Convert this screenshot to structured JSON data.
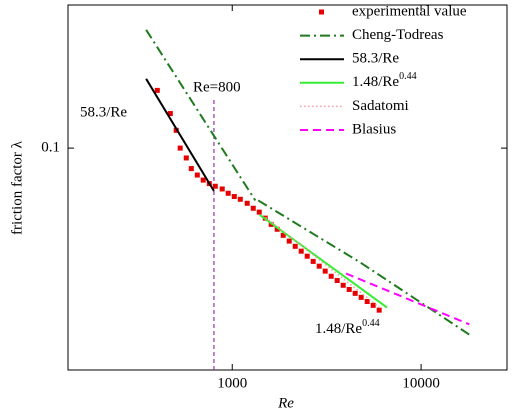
{
  "chart_data": {
    "type": "line",
    "xlabel": "Re",
    "ylabel": "friction factor λ",
    "xscale": "log",
    "yscale": "log",
    "xlim": [
      135,
      28500
    ],
    "ylim": [
      0.0195,
      0.287
    ],
    "xticks": [
      1000,
      10000
    ],
    "yticks": [
      0.1
    ],
    "legend": "upper right",
    "vline": 800,
    "vline_color": "#9933aa",
    "annotations": [
      "58.3/Re",
      "Re=800",
      "1.48/Re^0.44"
    ],
    "series": [
      {
        "name": "experimental value",
        "color": "#e60000",
        "style": "marker",
        "x": [
          401,
          470,
          505,
          530,
          571,
          607,
          653,
          702,
          756,
          813,
          885,
          952,
          1025,
          1103,
          1200,
          1292,
          1390,
          1495,
          1608,
          1730,
          1862,
          2003,
          2155,
          2318,
          2494,
          2683,
          2887,
          3106,
          3342,
          3595,
          3868,
          4162,
          4477,
          4817,
          5183,
          5576,
          6000
        ],
        "values": [
          0.153,
          0.129,
          0.114,
          0.1,
          0.093,
          0.086,
          0.082,
          0.079,
          0.077,
          0.0755,
          0.074,
          0.0717,
          0.07,
          0.0686,
          0.0666,
          0.0642,
          0.0624,
          0.0597,
          0.057,
          0.055,
          0.0526,
          0.0504,
          0.0485,
          0.0468,
          0.0451,
          0.0434,
          0.0419,
          0.0404,
          0.0389,
          0.0377,
          0.0364,
          0.0353,
          0.0343,
          0.0333,
          0.0323,
          0.0314,
          0.0303
        ]
      },
      {
        "name": "Cheng-Todreas",
        "color": "#1f7a1f",
        "style": "dashdot",
        "x": [
          350,
          1325,
          1350,
          1373,
          4753,
          18200
        ],
        "values": [
          0.239,
          0.068,
          null,
          0.068,
          0.0431,
          0.0252
        ]
      },
      {
        "name": "58.3/Re",
        "color": "#000000",
        "style": "solid",
        "x": [
          350,
          800
        ],
        "values": [
          0.1666,
          0.0729
        ]
      },
      {
        "name": "1.48/Re^0.44",
        "color": "#33ee33",
        "style": "solid",
        "x": [
          1400,
          6600
        ],
        "values": [
          0.0611,
          0.0309
        ]
      },
      {
        "name": "Sadatomi",
        "color": "#f0a0a0",
        "style": "dotted",
        "x": [
          1500,
          6000
        ],
        "values": [
          0.06,
          0.031
        ]
      },
      {
        "name": "Blasius",
        "color": "#ff00ff",
        "style": "dashed",
        "x": [
          4000,
          18000
        ],
        "values": [
          0.0397,
          0.0273
        ]
      }
    ]
  }
}
